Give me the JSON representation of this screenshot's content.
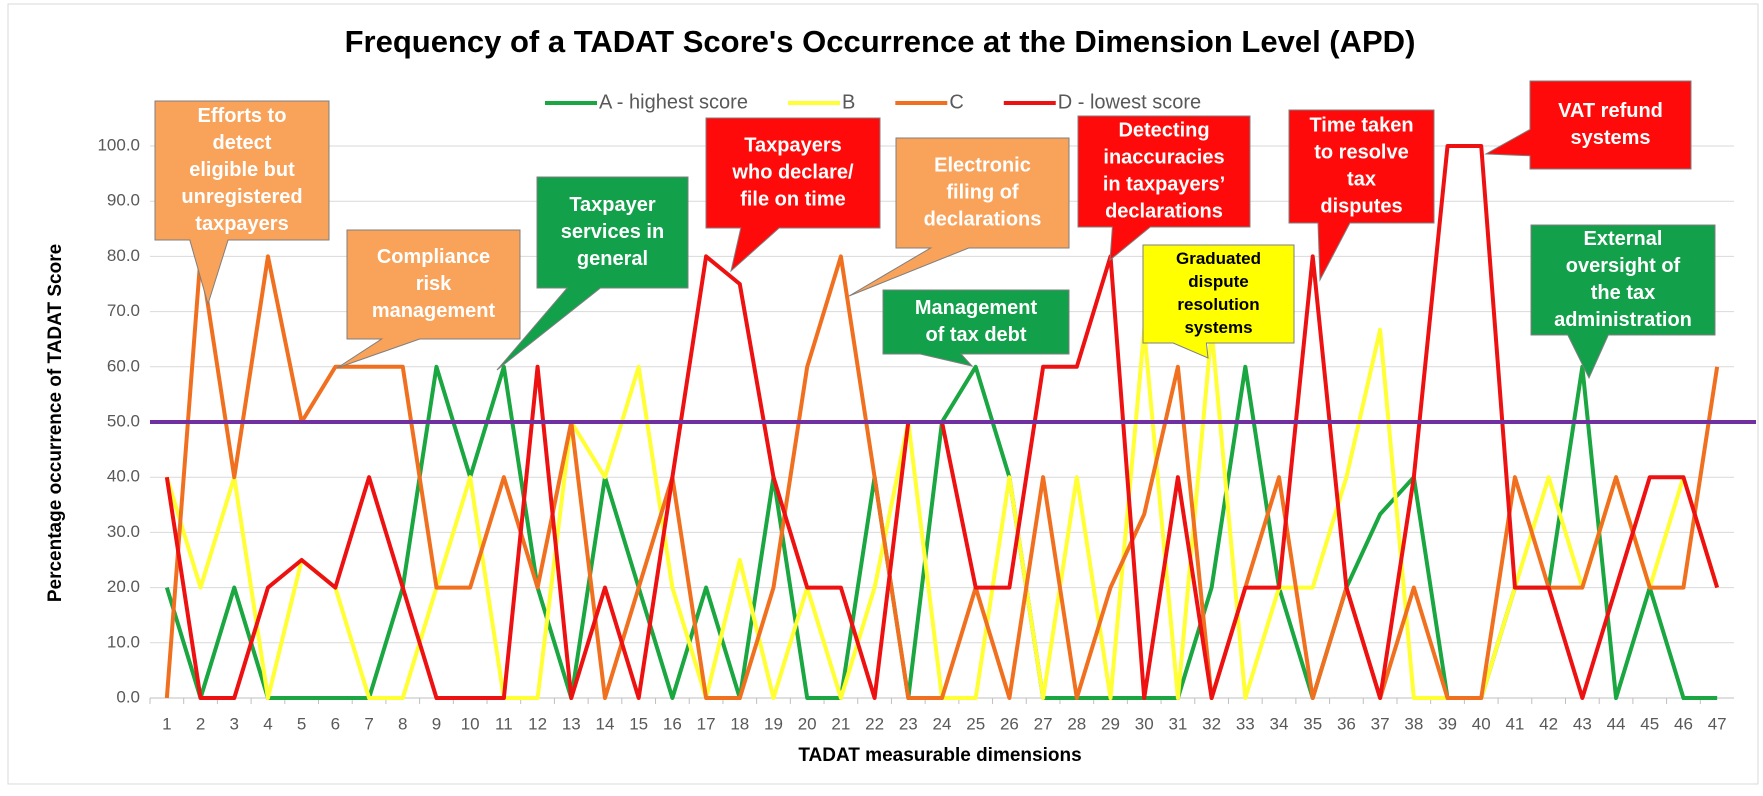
{
  "chart_data": {
    "type": "line",
    "title": "Frequency of a TADAT Score's Occurrence at the Dimension Level (APD)",
    "x_label": "TADAT measurable dimensions",
    "y_label": "Percentage occurrence of TADAT Score",
    "categories": [
      "1",
      "2",
      "3",
      "4",
      "5",
      "6",
      "7",
      "8",
      "9",
      "10",
      "11",
      "12",
      "13",
      "14",
      "15",
      "16",
      "17",
      "18",
      "19",
      "20",
      "21",
      "22",
      "23",
      "24",
      "25",
      "26",
      "27",
      "28",
      "29",
      "30",
      "31",
      "32",
      "33",
      "34",
      "35",
      "36",
      "37",
      "38",
      "39",
      "40",
      "41",
      "42",
      "43",
      "44",
      "45",
      "46",
      "47"
    ],
    "ylim": [
      0,
      100
    ],
    "yticks": [
      {
        "value": 0,
        "label": "0.0"
      },
      {
        "value": 10,
        "label": "10.0"
      },
      {
        "value": 20,
        "label": "20.0"
      },
      {
        "value": 30,
        "label": "30.0"
      },
      {
        "value": 40,
        "label": "40.0"
      },
      {
        "value": 50,
        "label": "50.0"
      },
      {
        "value": 60,
        "label": "60.0"
      },
      {
        "value": 70,
        "label": "70.0"
      },
      {
        "value": 80,
        "label": "80.0"
      },
      {
        "value": 90,
        "label": "90.0"
      },
      {
        "value": 100,
        "label": "100.0"
      }
    ],
    "grid": true,
    "reference_line": {
      "value": 50,
      "color": "#7030a0"
    },
    "series": [
      {
        "name": "A - highest score",
        "color": "#1aa640",
        "values": [
          20,
          0,
          20,
          0,
          0,
          0,
          0,
          20,
          60,
          40,
          60,
          20,
          0,
          40,
          20,
          0,
          20,
          0,
          40,
          0,
          0,
          40,
          0,
          50,
          60,
          40,
          0,
          0,
          0,
          0,
          0,
          20,
          60,
          20,
          0,
          20,
          33.3,
          40,
          0,
          0,
          20,
          20,
          60,
          0,
          20,
          0,
          0
        ]
      },
      {
        "name": "B",
        "color": "#ffff33",
        "values": [
          40,
          20,
          40,
          0,
          25,
          20,
          0,
          0,
          20,
          40,
          0,
          0,
          50,
          40,
          60,
          20,
          0,
          25,
          0,
          20,
          0,
          20,
          50,
          0,
          0,
          40,
          0,
          40,
          0,
          66.7,
          0,
          66.7,
          0,
          20,
          20,
          40,
          66.7,
          0,
          0,
          0,
          20,
          40,
          20,
          40,
          20,
          40,
          20
        ]
      },
      {
        "name": "C",
        "color": "#f07020",
        "values": [
          0,
          80,
          40,
          80,
          50,
          60,
          60,
          60,
          20,
          20,
          40,
          20,
          50,
          0,
          20,
          40,
          0,
          0,
          20,
          60,
          80,
          40,
          0,
          0,
          20,
          0,
          40,
          0,
          20,
          33.3,
          60,
          0,
          20,
          40,
          0,
          20,
          0,
          20,
          0,
          0,
          40,
          20,
          20,
          40,
          20,
          20,
          60
        ]
      },
      {
        "name": "D - lowest score",
        "color": "#ee1111",
        "values": [
          40,
          0,
          0,
          20,
          25,
          20,
          40,
          20,
          0,
          0,
          0,
          60,
          0,
          20,
          0,
          40,
          80,
          75,
          40,
          20,
          20,
          0,
          50,
          50,
          20,
          20,
          60,
          60,
          80,
          0,
          40,
          0,
          20,
          20,
          80,
          20,
          0,
          40,
          100,
          100,
          20,
          20,
          0,
          20,
          40,
          40,
          20
        ]
      }
    ],
    "annotations": [
      {
        "lines": [
          "Efforts to",
          "detect",
          "eligible but",
          "unregistered",
          "taxpayers"
        ],
        "color": "#f9a25a"
      },
      {
        "lines": [
          "Compliance",
          "risk",
          "management"
        ],
        "color": "#f9a25a"
      },
      {
        "lines": [
          "Taxpayer",
          "services in",
          "general"
        ],
        "color": "#12a04a"
      },
      {
        "lines": [
          "Taxpayers",
          "who declare/",
          "file on time"
        ],
        "color": "#ff0a0a"
      },
      {
        "lines": [
          "Electronic",
          "filing of",
          "declarations"
        ],
        "color": "#f9a25a"
      },
      {
        "lines": [
          "Management",
          "of tax debt"
        ],
        "color": "#12a04a"
      },
      {
        "lines": [
          "Detecting",
          "inaccuracies",
          "in taxpayers’",
          "declarations"
        ],
        "color": "#ff0a0a"
      },
      {
        "lines": [
          "Graduated",
          "dispute",
          "resolution",
          "systems"
        ],
        "color": "#ffff00"
      },
      {
        "lines": [
          "Time taken",
          "to resolve",
          "tax",
          "disputes"
        ],
        "color": "#ff0a0a"
      },
      {
        "lines": [
          "VAT refund",
          "systems"
        ],
        "color": "#ff0a0a"
      },
      {
        "lines": [
          "External",
          "oversight of",
          "the tax",
          "administration"
        ],
        "color": "#12a04a"
      }
    ]
  }
}
